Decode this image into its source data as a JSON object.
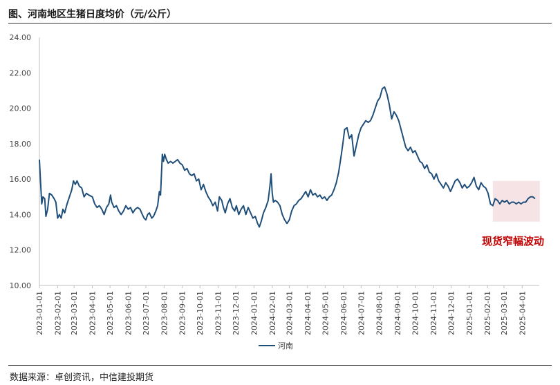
{
  "header": {
    "title": "图、河南地区生猪日度均价（元/公斤）"
  },
  "footer": {
    "source": "数据来源：卓创资讯，中信建投期货"
  },
  "colors": {
    "line": "#1f4e79",
    "highlight": "#f6e3e6",
    "annotation": "#c00000"
  },
  "chart_data": {
    "type": "line",
    "title": "图、河南地区生猪日度均价（元/公斤）",
    "xlabel": "",
    "ylabel": "",
    "ylim": [
      10,
      24
    ],
    "yticks": [
      "10.00",
      "12.00",
      "14.00",
      "16.00",
      "18.00",
      "20.00",
      "22.00",
      "24.00"
    ],
    "x_start": "2023-01-01",
    "x_end": "2025-04-30",
    "xticks": [
      "2023-01-01",
      "2023-02-01",
      "2023-03-01",
      "2023-04-01",
      "2023-05-01",
      "2023-06-01",
      "2023-07-01",
      "2023-08-01",
      "2023-09-01",
      "2023-10-01",
      "2023-11-01",
      "2023-12-01",
      "2024-01-01",
      "2024-02-01",
      "2024-03-01",
      "2024-04-01",
      "2024-05-01",
      "2024-06-01",
      "2024-07-01",
      "2024-08-01",
      "2024-09-01",
      "2024-10-01",
      "2024-11-01",
      "2024-12-01",
      "2025-01-01",
      "2025-02-01",
      "2025-03-01",
      "2025-04-01"
    ],
    "legend": {
      "position": "bottom-center",
      "entries": [
        "河南"
      ]
    },
    "annotation": {
      "text": "现货窄幅波动",
      "range": [
        "2025-02-10",
        "2025-05-01"
      ],
      "ylim": [
        13.6,
        15.9
      ]
    },
    "series": [
      {
        "name": "河南",
        "points": [
          [
            "2023-01-01",
            17.1
          ],
          [
            "2023-01-03",
            15.8
          ],
          [
            "2023-01-05",
            14.6
          ],
          [
            "2023-01-07",
            15.0
          ],
          [
            "2023-01-10",
            14.9
          ],
          [
            "2023-01-12",
            13.9
          ],
          [
            "2023-01-15",
            14.3
          ],
          [
            "2023-01-18",
            15.2
          ],
          [
            "2023-01-22",
            15.1
          ],
          [
            "2023-01-26",
            14.9
          ],
          [
            "2023-01-29",
            14.7
          ],
          [
            "2023-02-01",
            13.8
          ],
          [
            "2023-02-04",
            14.0
          ],
          [
            "2023-02-07",
            13.8
          ],
          [
            "2023-02-10",
            14.3
          ],
          [
            "2023-02-13",
            14.1
          ],
          [
            "2023-02-17",
            14.6
          ],
          [
            "2023-02-21",
            15.0
          ],
          [
            "2023-02-25",
            15.4
          ],
          [
            "2023-02-28",
            15.9
          ],
          [
            "2023-03-03",
            15.7
          ],
          [
            "2023-03-06",
            15.9
          ],
          [
            "2023-03-10",
            15.6
          ],
          [
            "2023-03-14",
            15.5
          ],
          [
            "2023-03-18",
            15.0
          ],
          [
            "2023-03-22",
            15.2
          ],
          [
            "2023-03-26",
            15.1
          ],
          [
            "2023-04-01",
            15.0
          ],
          [
            "2023-04-05",
            14.6
          ],
          [
            "2023-04-09",
            14.4
          ],
          [
            "2023-04-13",
            14.5
          ],
          [
            "2023-04-17",
            14.3
          ],
          [
            "2023-04-21",
            14.0
          ],
          [
            "2023-04-25",
            14.4
          ],
          [
            "2023-04-29",
            14.6
          ],
          [
            "2023-05-02",
            15.1
          ],
          [
            "2023-05-04",
            14.7
          ],
          [
            "2023-05-08",
            14.4
          ],
          [
            "2023-05-12",
            14.5
          ],
          [
            "2023-05-16",
            14.2
          ],
          [
            "2023-05-20",
            14.0
          ],
          [
            "2023-05-24",
            14.2
          ],
          [
            "2023-05-28",
            14.5
          ],
          [
            "2023-06-01",
            14.3
          ],
          [
            "2023-06-05",
            14.4
          ],
          [
            "2023-06-09",
            14.1
          ],
          [
            "2023-06-13",
            14.3
          ],
          [
            "2023-06-17",
            14.4
          ],
          [
            "2023-06-21",
            14.3
          ],
          [
            "2023-06-25",
            14.0
          ],
          [
            "2023-06-28",
            13.8
          ],
          [
            "2023-07-01",
            13.7
          ],
          [
            "2023-07-04",
            14.0
          ],
          [
            "2023-07-07",
            14.1
          ],
          [
            "2023-07-11",
            13.8
          ],
          [
            "2023-07-14",
            13.9
          ],
          [
            "2023-07-18",
            14.2
          ],
          [
            "2023-07-21",
            14.5
          ],
          [
            "2023-07-24",
            15.3
          ],
          [
            "2023-07-26",
            15.1
          ],
          [
            "2023-07-29",
            17.4
          ],
          [
            "2023-07-31",
            17.0
          ],
          [
            "2023-08-02",
            17.4
          ],
          [
            "2023-08-05",
            17.1
          ],
          [
            "2023-08-08",
            16.9
          ],
          [
            "2023-08-12",
            17.0
          ],
          [
            "2023-08-16",
            16.9
          ],
          [
            "2023-08-20",
            17.0
          ],
          [
            "2023-08-24",
            17.1
          ],
          [
            "2023-08-28",
            16.9
          ],
          [
            "2023-09-01",
            16.8
          ],
          [
            "2023-09-05",
            16.5
          ],
          [
            "2023-09-09",
            16.6
          ],
          [
            "2023-09-13",
            16.3
          ],
          [
            "2023-09-17",
            16.2
          ],
          [
            "2023-09-21",
            16.3
          ],
          [
            "2023-09-25",
            15.9
          ],
          [
            "2023-09-29",
            16.0
          ],
          [
            "2023-10-03",
            15.4
          ],
          [
            "2023-10-07",
            15.7
          ],
          [
            "2023-10-11",
            15.3
          ],
          [
            "2023-10-15",
            15.0
          ],
          [
            "2023-10-19",
            14.8
          ],
          [
            "2023-10-23",
            14.5
          ],
          [
            "2023-10-27",
            14.7
          ],
          [
            "2023-10-31",
            14.2
          ],
          [
            "2023-11-03",
            15.0
          ],
          [
            "2023-11-07",
            14.8
          ],
          [
            "2023-11-10",
            14.4
          ],
          [
            "2023-11-13",
            14.1
          ],
          [
            "2023-11-17",
            14.6
          ],
          [
            "2023-11-21",
            14.9
          ],
          [
            "2023-11-25",
            14.4
          ],
          [
            "2023-11-29",
            14.2
          ],
          [
            "2023-12-02",
            14.5
          ],
          [
            "2023-12-06",
            14.0
          ],
          [
            "2023-12-10",
            14.3
          ],
          [
            "2023-12-14",
            14.5
          ],
          [
            "2023-12-18",
            14.0
          ],
          [
            "2023-12-22",
            14.4
          ],
          [
            "2023-12-26",
            14.1
          ],
          [
            "2023-12-30",
            13.8
          ],
          [
            "2024-01-03",
            13.9
          ],
          [
            "2024-01-07",
            13.5
          ],
          [
            "2024-01-10",
            13.3
          ],
          [
            "2024-01-13",
            13.6
          ],
          [
            "2024-01-17",
            14.1
          ],
          [
            "2024-01-21",
            14.4
          ],
          [
            "2024-01-25",
            14.8
          ],
          [
            "2024-01-28",
            15.6
          ],
          [
            "2024-01-30",
            16.3
          ],
          [
            "2024-02-01",
            15.2
          ],
          [
            "2024-02-03",
            14.7
          ],
          [
            "2024-02-06",
            14.8
          ],
          [
            "2024-02-10",
            14.7
          ],
          [
            "2024-02-14",
            14.5
          ],
          [
            "2024-02-18",
            14.0
          ],
          [
            "2024-02-22",
            13.7
          ],
          [
            "2024-02-26",
            13.5
          ],
          [
            "2024-03-01",
            13.7
          ],
          [
            "2024-03-05",
            14.2
          ],
          [
            "2024-03-09",
            14.5
          ],
          [
            "2024-03-13",
            14.6
          ],
          [
            "2024-03-17",
            14.8
          ],
          [
            "2024-03-21",
            14.9
          ],
          [
            "2024-03-25",
            15.1
          ],
          [
            "2024-03-29",
            15.3
          ],
          [
            "2024-04-02",
            15.0
          ],
          [
            "2024-04-06",
            15.4
          ],
          [
            "2024-04-10",
            15.1
          ],
          [
            "2024-04-14",
            15.2
          ],
          [
            "2024-04-18",
            15.0
          ],
          [
            "2024-04-22",
            15.1
          ],
          [
            "2024-04-26",
            14.9
          ],
          [
            "2024-04-30",
            15.0
          ],
          [
            "2024-05-04",
            14.8
          ],
          [
            "2024-05-08",
            15.0
          ],
          [
            "2024-05-12",
            15.1
          ],
          [
            "2024-05-16",
            15.4
          ],
          [
            "2024-05-20",
            15.8
          ],
          [
            "2024-05-24",
            16.4
          ],
          [
            "2024-05-28",
            17.3
          ],
          [
            "2024-05-31",
            18.0
          ],
          [
            "2024-06-03",
            18.8
          ],
          [
            "2024-06-07",
            18.9
          ],
          [
            "2024-06-11",
            18.3
          ],
          [
            "2024-06-15",
            18.5
          ],
          [
            "2024-06-19",
            17.3
          ],
          [
            "2024-06-23",
            17.9
          ],
          [
            "2024-06-27",
            18.5
          ],
          [
            "2024-07-01",
            18.9
          ],
          [
            "2024-07-05",
            19.1
          ],
          [
            "2024-07-09",
            19.3
          ],
          [
            "2024-07-13",
            19.2
          ],
          [
            "2024-07-17",
            19.3
          ],
          [
            "2024-07-21",
            19.6
          ],
          [
            "2024-07-25",
            20.0
          ],
          [
            "2024-07-29",
            20.4
          ],
          [
            "2024-08-02",
            20.6
          ],
          [
            "2024-08-06",
            21.1
          ],
          [
            "2024-08-10",
            21.2
          ],
          [
            "2024-08-14",
            20.8
          ],
          [
            "2024-08-18",
            20.2
          ],
          [
            "2024-08-22",
            19.4
          ],
          [
            "2024-08-26",
            19.8
          ],
          [
            "2024-08-30",
            19.6
          ],
          [
            "2024-09-03",
            19.3
          ],
          [
            "2024-09-07",
            18.8
          ],
          [
            "2024-09-11",
            18.3
          ],
          [
            "2024-09-15",
            17.8
          ],
          [
            "2024-09-19",
            17.6
          ],
          [
            "2024-09-23",
            17.8
          ],
          [
            "2024-09-27",
            17.5
          ],
          [
            "2024-10-01",
            17.6
          ],
          [
            "2024-10-05",
            17.3
          ],
          [
            "2024-10-09",
            17.0
          ],
          [
            "2024-10-13",
            16.9
          ],
          [
            "2024-10-17",
            16.6
          ],
          [
            "2024-10-21",
            16.8
          ],
          [
            "2024-10-25",
            16.4
          ],
          [
            "2024-10-29",
            16.3
          ],
          [
            "2024-11-02",
            16.0
          ],
          [
            "2024-11-06",
            16.3
          ],
          [
            "2024-11-10",
            15.9
          ],
          [
            "2024-11-14",
            15.7
          ],
          [
            "2024-11-18",
            15.5
          ],
          [
            "2024-11-22",
            15.8
          ],
          [
            "2024-11-26",
            15.6
          ],
          [
            "2024-11-30",
            15.3
          ],
          [
            "2024-12-04",
            15.6
          ],
          [
            "2024-12-08",
            15.9
          ],
          [
            "2024-12-12",
            16.0
          ],
          [
            "2024-12-16",
            15.8
          ],
          [
            "2024-12-20",
            15.5
          ],
          [
            "2024-12-24",
            15.7
          ],
          [
            "2024-12-28",
            15.5
          ],
          [
            "2025-01-01",
            15.6
          ],
          [
            "2025-01-05",
            15.8
          ],
          [
            "2025-01-09",
            16.1
          ],
          [
            "2025-01-13",
            15.6
          ],
          [
            "2025-01-17",
            15.4
          ],
          [
            "2025-01-21",
            15.8
          ],
          [
            "2025-01-25",
            15.6
          ],
          [
            "2025-01-29",
            15.5
          ],
          [
            "2025-02-02",
            15.2
          ],
          [
            "2025-02-06",
            14.6
          ],
          [
            "2025-02-10",
            14.5
          ],
          [
            "2025-02-14",
            14.9
          ],
          [
            "2025-02-18",
            14.8
          ],
          [
            "2025-02-22",
            14.6
          ],
          [
            "2025-02-26",
            14.8
          ],
          [
            "2025-03-02",
            14.7
          ],
          [
            "2025-03-06",
            14.8
          ],
          [
            "2025-03-10",
            14.6
          ],
          [
            "2025-03-14",
            14.7
          ],
          [
            "2025-03-18",
            14.7
          ],
          [
            "2025-03-22",
            14.6
          ],
          [
            "2025-03-26",
            14.7
          ],
          [
            "2025-03-30",
            14.6
          ],
          [
            "2025-04-03",
            14.7
          ],
          [
            "2025-04-07",
            14.7
          ],
          [
            "2025-04-11",
            14.9
          ],
          [
            "2025-04-15",
            15.0
          ],
          [
            "2025-04-19",
            15.0
          ],
          [
            "2025-04-23",
            14.9
          ]
        ]
      }
    ]
  }
}
